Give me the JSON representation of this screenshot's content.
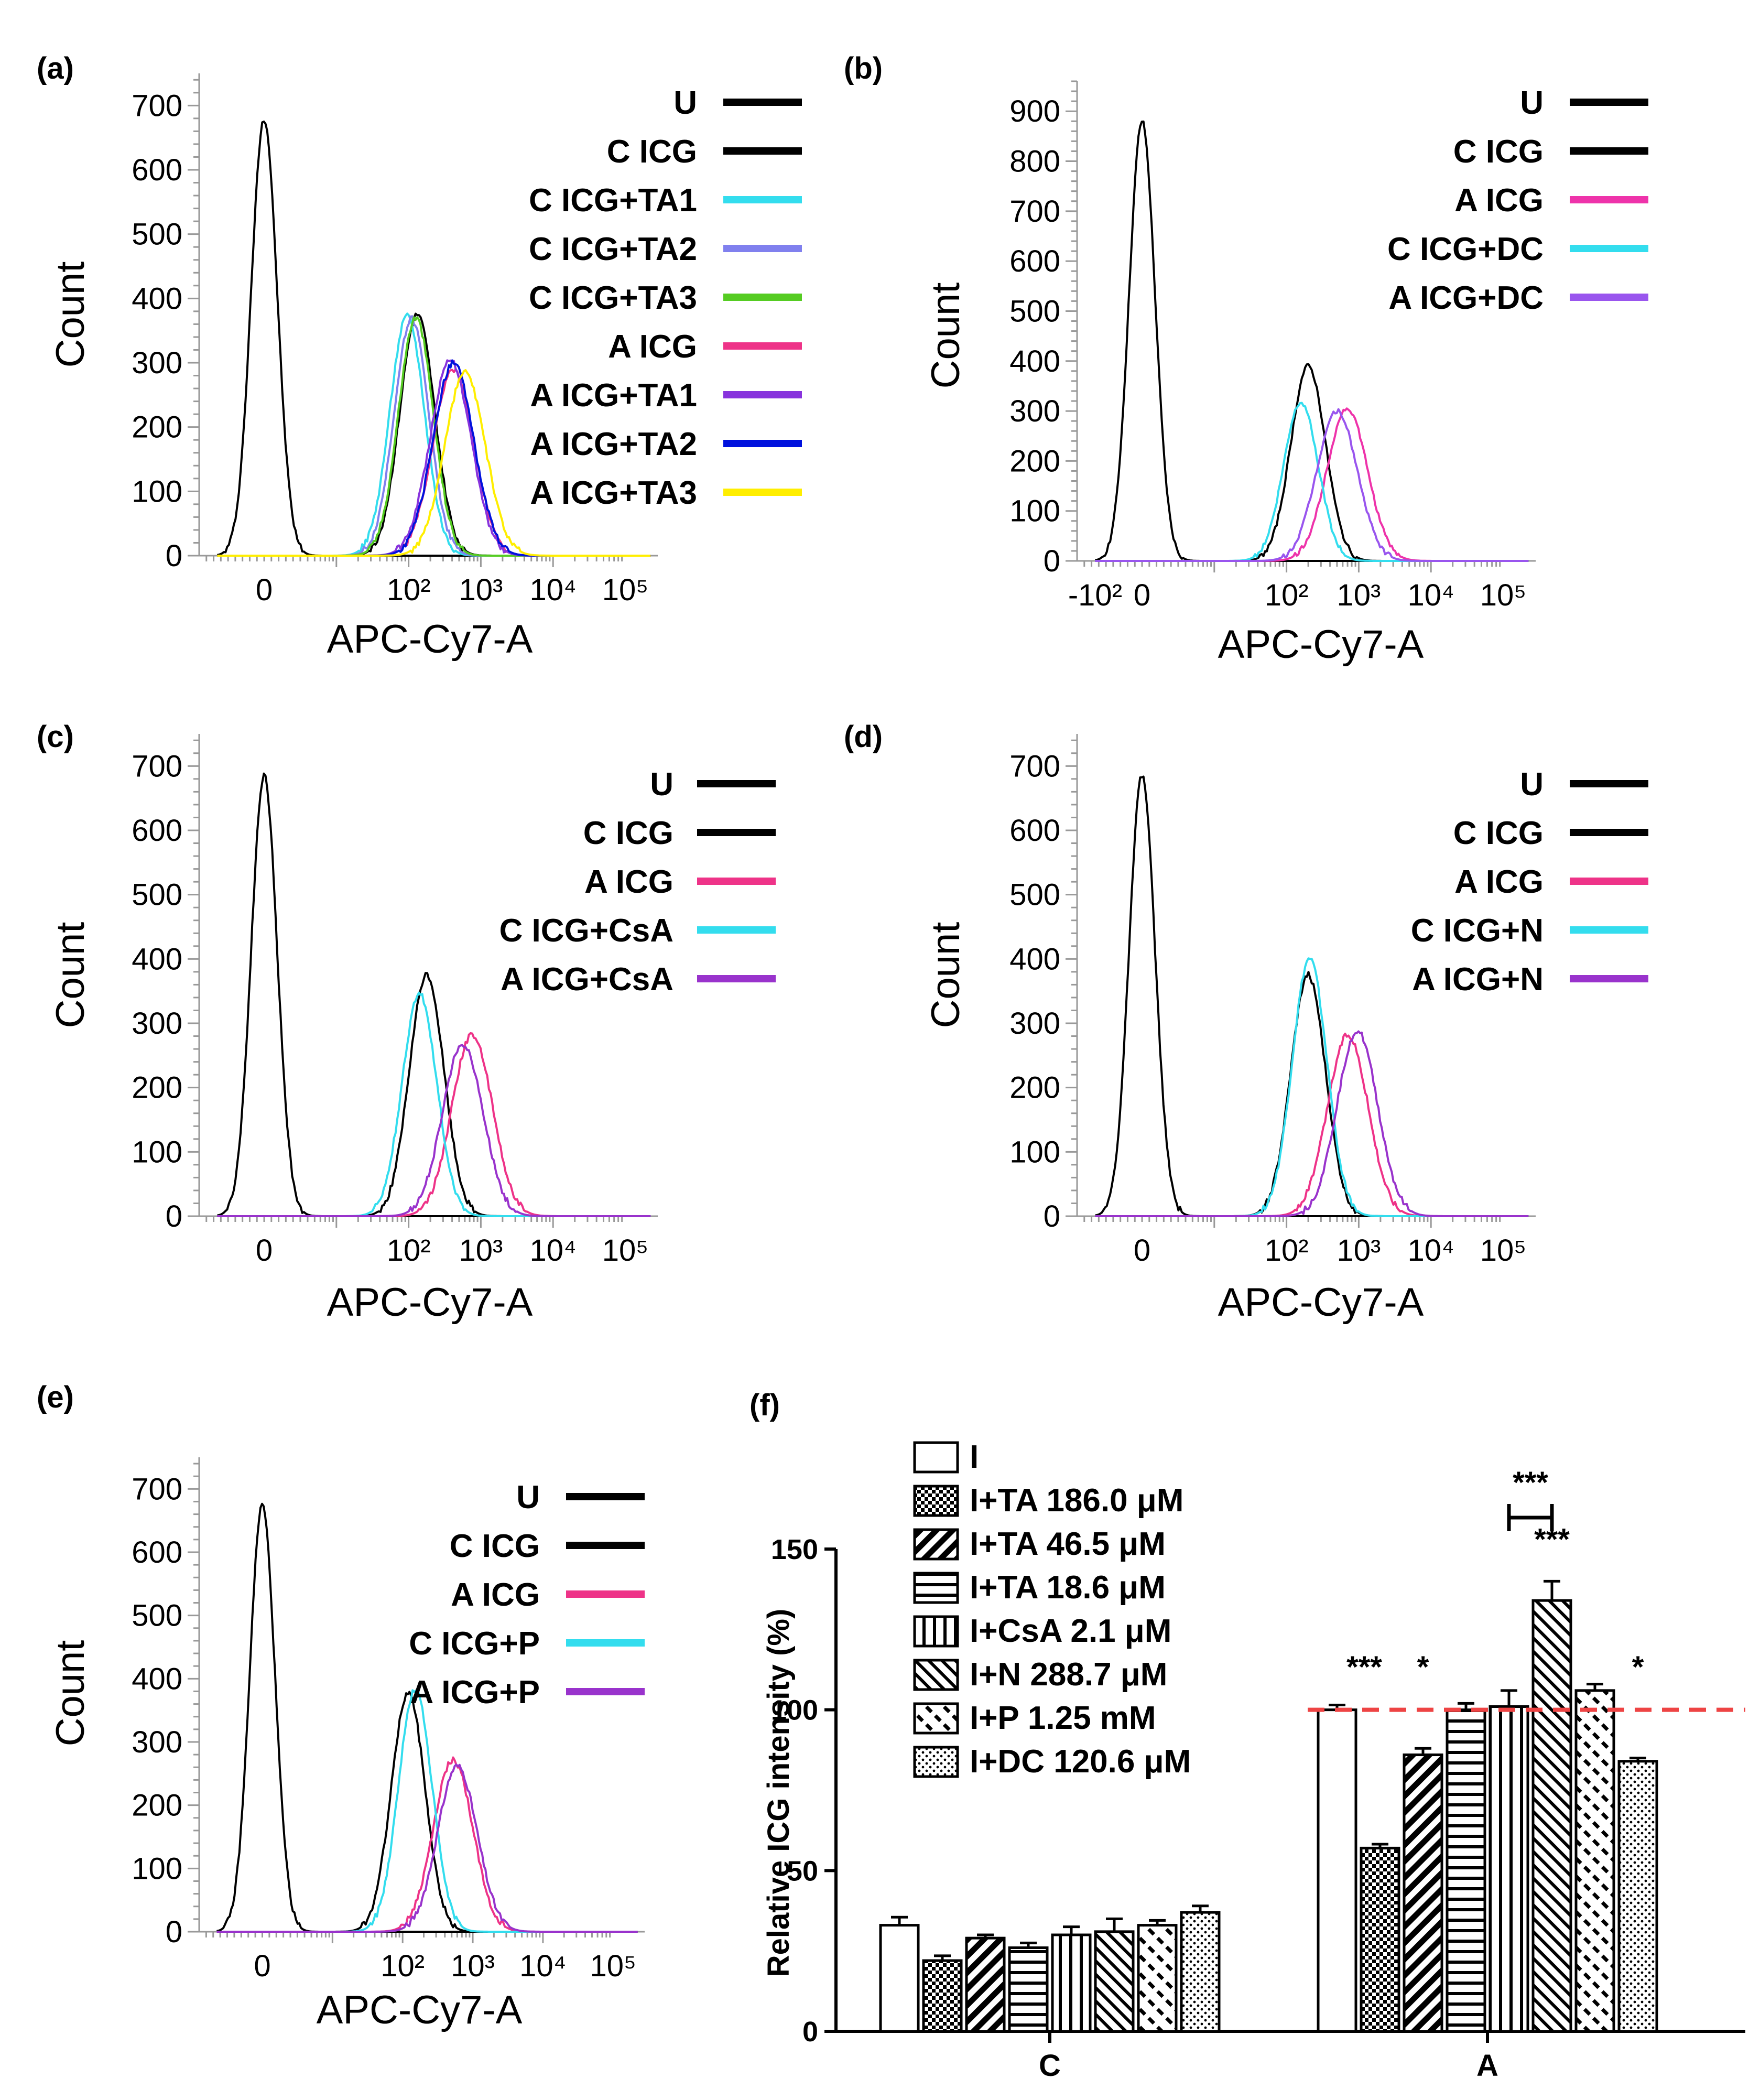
{
  "panels": [
    {
      "id": "a",
      "label": "(a)",
      "xlabel": "APC-Cy7-A",
      "ylabel": "Count",
      "yticks": [
        "0",
        "100",
        "200",
        "300",
        "400",
        "500",
        "600",
        "700"
      ],
      "ymax": 750,
      "xticks": [
        {
          "pos": 0,
          "text": "0"
        },
        {
          "pos": 2,
          "text": "10²"
        },
        {
          "pos": 3,
          "text": "10³"
        },
        {
          "pos": 4,
          "text": "10⁴"
        },
        {
          "pos": 5,
          "text": "10⁵"
        }
      ],
      "series": [
        {
          "name": "U",
          "color": "#000000",
          "mode": 0,
          "peak": 680,
          "sigma": 0.18
        },
        {
          "name": "C ICG",
          "color": "#000000",
          "mode": 2.12,
          "peak": 375,
          "sigma": 0.24
        },
        {
          "name": "C ICG+TA1",
          "color": "#33ddee",
          "mode": 1.98,
          "peak": 372,
          "sigma": 0.24
        },
        {
          "name": "C ICG+TA2",
          "color": "#8080ee",
          "mode": 2.04,
          "peak": 368,
          "sigma": 0.24
        },
        {
          "name": "C ICG+TA3",
          "color": "#55cc22",
          "mode": 2.1,
          "peak": 370,
          "sigma": 0.24
        },
        {
          "name": "A ICG",
          "color": "#ee3388",
          "mode": 2.62,
          "peak": 290,
          "sigma": 0.28
        },
        {
          "name": "A ICG+TA1",
          "color": "#8833dd",
          "mode": 2.58,
          "peak": 305,
          "sigma": 0.28
        },
        {
          "name": "A ICG+TA2",
          "color": "#0011dd",
          "mode": 2.62,
          "peak": 300,
          "sigma": 0.28
        },
        {
          "name": "A ICG+TA3",
          "color": "#ffee00",
          "mode": 2.78,
          "peak": 285,
          "sigma": 0.28
        }
      ]
    },
    {
      "id": "b",
      "label": "(b)",
      "xlabel": "APC-Cy7-A",
      "ylabel": "Count",
      "yticks": [
        "0",
        "100",
        "200",
        "300",
        "400",
        "500",
        "600",
        "700",
        "800",
        "900"
      ],
      "ymax": 960,
      "xticks": [
        {
          "pos": -0.65,
          "text": "-10²"
        },
        {
          "pos": 0,
          "text": "0"
        },
        {
          "pos": 2,
          "text": "10²"
        },
        {
          "pos": 3,
          "text": "10³"
        },
        {
          "pos": 4,
          "text": "10⁴"
        },
        {
          "pos": 5,
          "text": "10⁵"
        }
      ],
      "series": [
        {
          "name": "U",
          "color": "#000000",
          "mode": 0,
          "peak": 880,
          "sigma": 0.18
        },
        {
          "name": "C ICG",
          "color": "#000000",
          "mode": 2.3,
          "peak": 390,
          "sigma": 0.24
        },
        {
          "name": "A ICG",
          "color": "#ee33aa",
          "mode": 2.84,
          "peak": 305,
          "sigma": 0.28
        },
        {
          "name": "C ICG+DC",
          "color": "#33ddee",
          "mode": 2.2,
          "peak": 318,
          "sigma": 0.24
        },
        {
          "name": "A ICG+DC",
          "color": "#9955ee",
          "mode": 2.7,
          "peak": 300,
          "sigma": 0.28
        }
      ]
    },
    {
      "id": "c",
      "label": "(c)",
      "xlabel": "APC-Cy7-A",
      "ylabel": "Count",
      "yticks": [
        "0",
        "100",
        "200",
        "300",
        "400",
        "500",
        "600",
        "700"
      ],
      "ymax": 750,
      "xticks": [
        {
          "pos": 0,
          "text": "0"
        },
        {
          "pos": 2,
          "text": "10²"
        },
        {
          "pos": 3,
          "text": "10³"
        },
        {
          "pos": 4,
          "text": "10⁴"
        },
        {
          "pos": 5,
          "text": "10⁵"
        }
      ],
      "series": [
        {
          "name": "U",
          "color": "#000000",
          "mode": 0,
          "peak": 685,
          "sigma": 0.18
        },
        {
          "name": "C ICG",
          "color": "#000000",
          "mode": 2.25,
          "peak": 375,
          "sigma": 0.24
        },
        {
          "name": "A ICG",
          "color": "#ee3388",
          "mode": 2.88,
          "peak": 282,
          "sigma": 0.28
        },
        {
          "name": "C ICG+CsA",
          "color": "#33ddee",
          "mode": 2.15,
          "peak": 345,
          "sigma": 0.24
        },
        {
          "name": "A ICG+CsA",
          "color": "#9933cc",
          "mode": 2.75,
          "peak": 268,
          "sigma": 0.28
        }
      ]
    },
    {
      "id": "d",
      "label": "(d)",
      "xlabel": "APC-Cy7-A",
      "ylabel": "Count",
      "yticks": [
        "0",
        "100",
        "200",
        "300",
        "400",
        "500",
        "600",
        "700"
      ],
      "ymax": 750,
      "xticks": [
        {
          "pos": 0,
          "text": "0"
        },
        {
          "pos": 2,
          "text": "10²"
        },
        {
          "pos": 3,
          "text": "10³"
        },
        {
          "pos": 4,
          "text": "10⁴"
        },
        {
          "pos": 5,
          "text": "10⁵"
        }
      ],
      "series": [
        {
          "name": "U",
          "color": "#000000",
          "mode": 0,
          "peak": 685,
          "sigma": 0.18
        },
        {
          "name": "C ICG",
          "color": "#000000",
          "mode": 2.3,
          "peak": 375,
          "sigma": 0.24
        },
        {
          "name": "A ICG",
          "color": "#ee3388",
          "mode": 2.85,
          "peak": 282,
          "sigma": 0.28
        },
        {
          "name": "C ICG+N",
          "color": "#33ddee",
          "mode": 2.32,
          "peak": 400,
          "sigma": 0.24
        },
        {
          "name": "A ICG+N",
          "color": "#9933cc",
          "mode": 2.98,
          "peak": 288,
          "sigma": 0.28
        }
      ]
    },
    {
      "id": "e",
      "label": "(e)",
      "xlabel": "APC-Cy7-A",
      "ylabel": "Count",
      "yticks": [
        "0",
        "100",
        "200",
        "300",
        "400",
        "500",
        "600",
        "700"
      ],
      "ymax": 750,
      "xticks": [
        {
          "pos": 0,
          "text": "0"
        },
        {
          "pos": 2,
          "text": "10²"
        },
        {
          "pos": 3,
          "text": "10³"
        },
        {
          "pos": 4,
          "text": "10⁴"
        },
        {
          "pos": 5,
          "text": "10⁵"
        }
      ],
      "series": [
        {
          "name": "U",
          "color": "#000000",
          "mode": 0,
          "peak": 675,
          "sigma": 0.18
        },
        {
          "name": "C ICG",
          "color": "#000000",
          "mode": 2.08,
          "peak": 378,
          "sigma": 0.24
        },
        {
          "name": "A ICG",
          "color": "#ee3388",
          "mode": 2.72,
          "peak": 272,
          "sigma": 0.28
        },
        {
          "name": "C ICG+P",
          "color": "#33ddee",
          "mode": 2.18,
          "peak": 383,
          "sigma": 0.24
        },
        {
          "name": "A ICG+P",
          "color": "#9933cc",
          "mode": 2.78,
          "peak": 262,
          "sigma": 0.28
        }
      ]
    }
  ],
  "chart_data": {
    "type": "bar",
    "label": "(f)",
    "ylabel": "Relative ICG intensity (%)",
    "ylim": [
      0,
      150
    ],
    "yticks": [
      "0",
      "50",
      "100",
      "150"
    ],
    "categories": [
      "C",
      "A"
    ],
    "reference_line": 100,
    "series": [
      {
        "name": "I",
        "pattern": "none",
        "values": [
          33,
          100
        ],
        "errors": [
          2.5,
          1.5
        ]
      },
      {
        "name": "I+TA 186.0 μM",
        "pattern": "checker",
        "values": [
          22,
          57
        ],
        "errors": [
          1.5,
          1.2
        ]
      },
      {
        "name": "I+TA 46.5  μM",
        "pattern": "diag-dense",
        "values": [
          29,
          86
        ],
        "errors": [
          1,
          2
        ]
      },
      {
        "name": "I+TA 18.6 μM",
        "pattern": "horizontal",
        "values": [
          26,
          100
        ],
        "errors": [
          1.5,
          2
        ]
      },
      {
        "name": "I+CsA 2.1 μM",
        "pattern": "vertical",
        "values": [
          30,
          101
        ],
        "errors": [
          2.5,
          5
        ]
      },
      {
        "name": "I+N 288.7 μM",
        "pattern": "diag-thin",
        "values": [
          31,
          134
        ],
        "errors": [
          4,
          6
        ]
      },
      {
        "name": "I+P 1.25 mM",
        "pattern": "diag-dash",
        "values": [
          33,
          106
        ],
        "errors": [
          1.5,
          2
        ]
      },
      {
        "name": "I+DC 120.6 μM",
        "pattern": "dots",
        "values": [
          37,
          84
        ],
        "errors": [
          2,
          1
        ]
      }
    ],
    "annotations": [
      {
        "text": "***",
        "category": "A",
        "series": 1
      },
      {
        "text": "*",
        "category": "A",
        "series": 2
      },
      {
        "text": "***",
        "category": "A",
        "series": 5
      },
      {
        "text": "*",
        "category": "A",
        "series": 7
      },
      {
        "text": "***",
        "category": "A",
        "bracket": [
          4,
          5
        ]
      }
    ]
  }
}
